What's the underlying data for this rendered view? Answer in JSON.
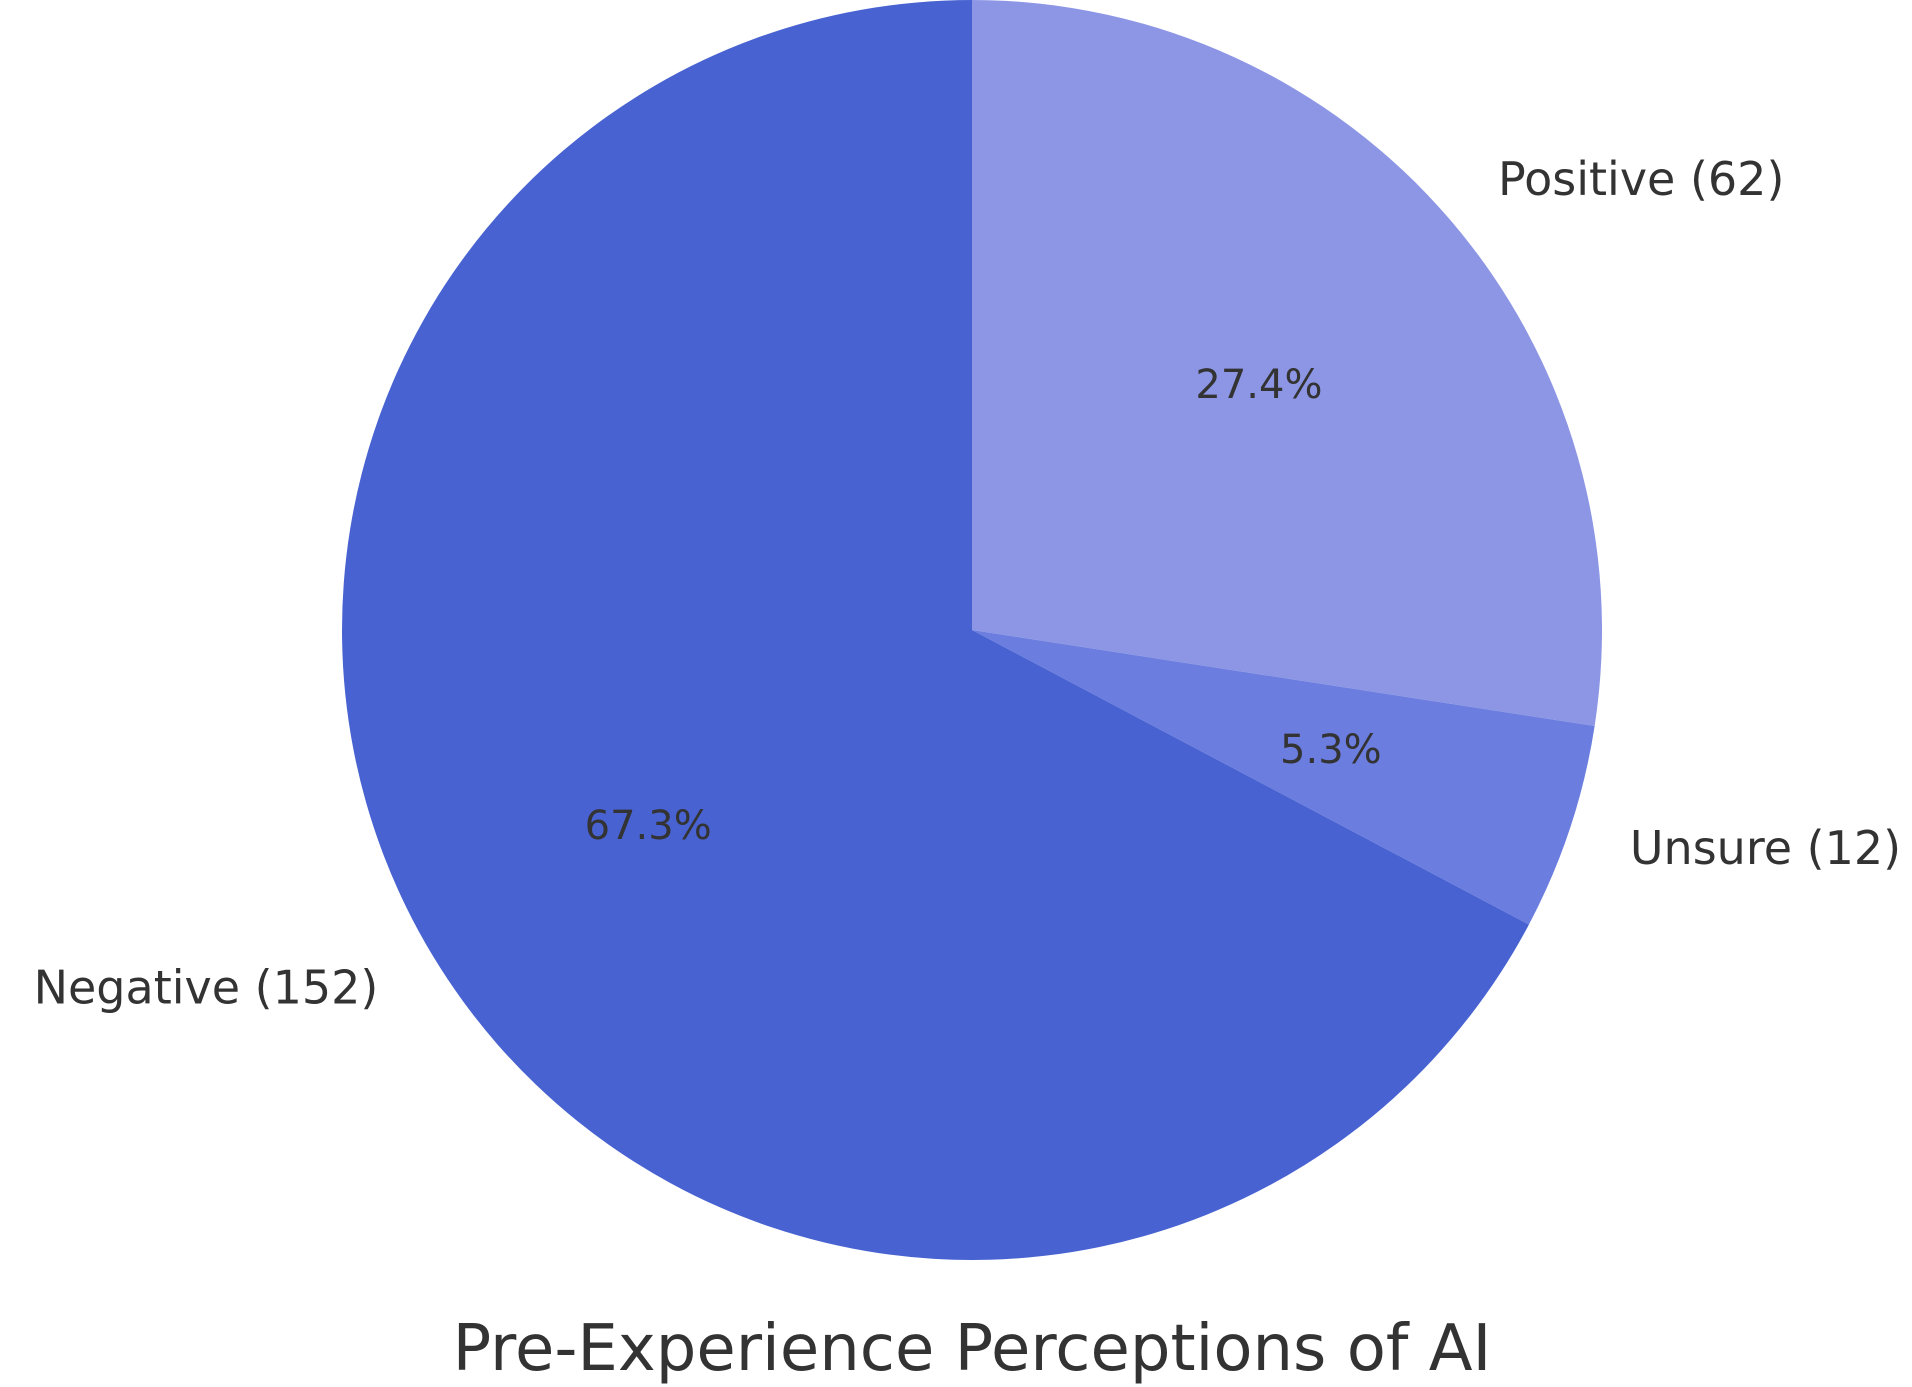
{
  "chart_data": {
    "type": "pie",
    "title": "Pre-Experience Perceptions of AI",
    "slices": [
      {
        "name": "Positive",
        "value": 62,
        "percent_label": "27.4%",
        "label": "Positive (62)",
        "color": "#8d96e5"
      },
      {
        "name": "Unsure",
        "value": 12,
        "percent_label": "5.3%",
        "label": "Unsure (12)",
        "color": "#6b7ddf"
      },
      {
        "name": "Negative",
        "value": 152,
        "percent_label": "67.3%",
        "label": "Negative (152)",
        "color": "#4863d1"
      }
    ],
    "start_angle": "12 o'clock",
    "direction": "clockwise",
    "legend": "none"
  }
}
